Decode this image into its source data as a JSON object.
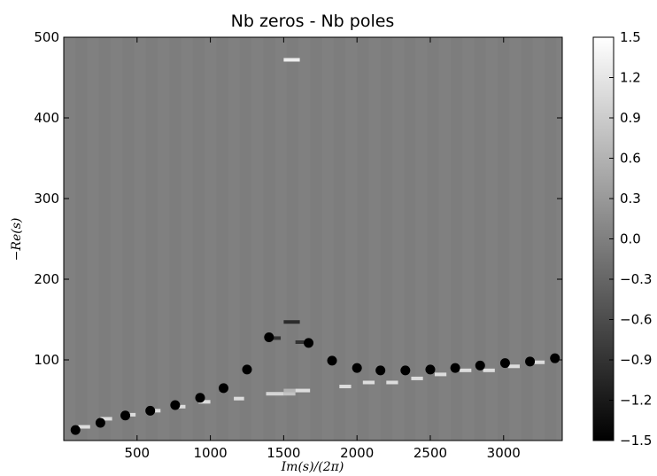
{
  "chart_data": {
    "type": "heatmap",
    "title": "Nb zeros - Nb poles",
    "xlabel": "Im(s)/(2π)",
    "ylabel": "−Re(s)",
    "xlim": [
      0,
      3400
    ],
    "ylim": [
      0,
      500
    ],
    "x_ticks": [
      500,
      1000,
      1500,
      2000,
      2500,
      3000
    ],
    "x_tick_labels": [
      "500",
      "1000",
      "1500",
      "2000",
      "2500",
      "3000"
    ],
    "y_ticks": [
      100,
      200,
      300,
      400,
      500
    ],
    "y_tick_labels": [
      "100",
      "200",
      "300",
      "400",
      "500"
    ],
    "colorbar": {
      "range": [
        -1.5,
        1.5
      ],
      "colormap": "grayscale",
      "ticks": [
        1.5,
        1.2,
        0.9,
        0.6,
        0.3,
        0.0,
        -0.3,
        -0.6,
        -0.9,
        -1.2,
        -1.5
      ],
      "tick_labels": [
        "1.5",
        "1.2",
        "0.9",
        "0.6",
        "0.3",
        "0.0",
        "−0.3",
        "−0.6",
        "−0.9",
        "−1.2",
        "−1.5"
      ]
    },
    "background_value": 0,
    "cells": [
      {
        "x": [
          100,
          180
        ],
        "y": 17,
        "value": 1.1
      },
      {
        "x": [
          250,
          330
        ],
        "y": 27,
        "value": 1.1
      },
      {
        "x": [
          410,
          490
        ],
        "y": 32,
        "value": 1.1
      },
      {
        "x": [
          580,
          660
        ],
        "y": 37,
        "value": 1.1
      },
      {
        "x": [
          750,
          830
        ],
        "y": 42,
        "value": 1.1
      },
      {
        "x": [
          920,
          1000
        ],
        "y": 48,
        "value": 1.1
      },
      {
        "x": [
          1160,
          1230
        ],
        "y": 52,
        "value": 1.1
      },
      {
        "x": [
          1060,
          1110
        ],
        "y": 63,
        "value": -0.6
      },
      {
        "x": [
          1380,
          1500
        ],
        "y": 58,
        "value": 1.0
      },
      {
        "x": [
          1500,
          1580
        ],
        "y": 58,
        "value": 0.8
      },
      {
        "x": [
          1500,
          1580
        ],
        "y": 62,
        "value": 0.6
      },
      {
        "x": [
          1580,
          1680
        ],
        "y": 62,
        "value": 1.1
      },
      {
        "x": [
          1880,
          1960
        ],
        "y": 67,
        "value": 1.1
      },
      {
        "x": [
          2040,
          2120
        ],
        "y": 72,
        "value": 1.1
      },
      {
        "x": [
          2200,
          2280
        ],
        "y": 72,
        "value": 1.1
      },
      {
        "x": [
          2370,
          2450
        ],
        "y": 77,
        "value": 1.1
      },
      {
        "x": [
          2530,
          2610
        ],
        "y": 82,
        "value": 1.1
      },
      {
        "x": [
          2700,
          2780
        ],
        "y": 87,
        "value": 1.1
      },
      {
        "x": [
          2860,
          2940
        ],
        "y": 87,
        "value": 1.1
      },
      {
        "x": [
          3030,
          3110
        ],
        "y": 92,
        "value": 1.1
      },
      {
        "x": [
          3200,
          3280
        ],
        "y": 97,
        "value": 1.1
      },
      {
        "x": [
          1410,
          1480
        ],
        "y": 127,
        "value": -0.9
      },
      {
        "x": [
          1580,
          1640
        ],
        "y": 122,
        "value": -0.9
      },
      {
        "x": [
          1500,
          1610
        ],
        "y": 147,
        "value": -1.0
      },
      {
        "x": [
          1500,
          1610
        ],
        "y": 472,
        "value": 1.3
      }
    ],
    "points": [
      {
        "x": 80,
        "y": 13
      },
      {
        "x": 250,
        "y": 22
      },
      {
        "x": 420,
        "y": 31
      },
      {
        "x": 590,
        "y": 37
      },
      {
        "x": 760,
        "y": 44
      },
      {
        "x": 930,
        "y": 53
      },
      {
        "x": 1090,
        "y": 65
      },
      {
        "x": 1250,
        "y": 88
      },
      {
        "x": 1400,
        "y": 128
      },
      {
        "x": 1670,
        "y": 121
      },
      {
        "x": 1830,
        "y": 99
      },
      {
        "x": 2000,
        "y": 90
      },
      {
        "x": 2160,
        "y": 87
      },
      {
        "x": 2330,
        "y": 87
      },
      {
        "x": 2500,
        "y": 88
      },
      {
        "x": 2670,
        "y": 90
      },
      {
        "x": 2840,
        "y": 93
      },
      {
        "x": 3010,
        "y": 96
      },
      {
        "x": 3180,
        "y": 98
      },
      {
        "x": 3350,
        "y": 102
      }
    ]
  }
}
